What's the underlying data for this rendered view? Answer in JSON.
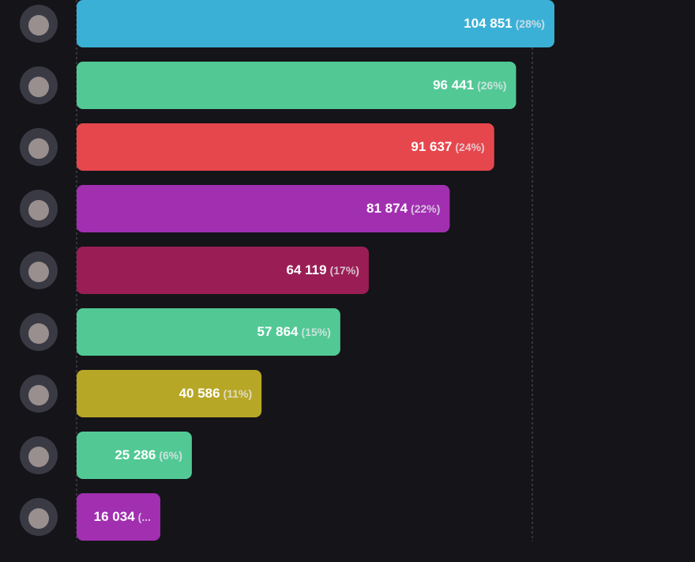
{
  "chart_data": {
    "type": "hbar",
    "values": [
      104851,
      96441,
      91637,
      81874,
      64119,
      57864,
      40586,
      25286,
      16034
    ],
    "value_labels": [
      "104 851",
      "96 441",
      "91 637",
      "81 874",
      "64 119",
      "57 864",
      "40 586",
      "25 286",
      "16 034"
    ],
    "percent_labels": [
      "(28%)",
      "(26%)",
      "(24%)",
      "(22%)",
      "(17%)",
      "(15%)",
      "(11%)",
      "(6%)",
      "(..."
    ],
    "colors": [
      "#3bb0d6",
      "#52c995",
      "#e6474d",
      "#a12fb0",
      "#9a1e55",
      "#52c995",
      "#b7a726",
      "#52c995",
      "#a12fb0"
    ],
    "xlim": [
      0,
      100000
    ],
    "xticks": [
      0,
      100000
    ],
    "grid": true
  }
}
